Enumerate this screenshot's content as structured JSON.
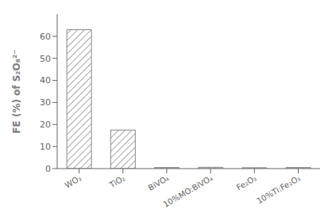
{
  "chart_data": {
    "type": "bar",
    "categories": [
      "WO₃",
      "TiO₂",
      "BiVO₄",
      "10%MO:BiVO₄",
      "Fe₂O₃",
      "10%Ti:Fe₂O₃"
    ],
    "values": [
      63,
      17.5,
      0.5,
      0.6,
      0.4,
      0.5
    ],
    "ylabel": "FE (%) of S₂O₈²⁻",
    "color": "#888888",
    "ylim": [
      0,
      70
    ],
    "yticks": [
      0,
      10,
      20,
      30,
      40,
      50,
      60
    ],
    "grid": false
  }
}
